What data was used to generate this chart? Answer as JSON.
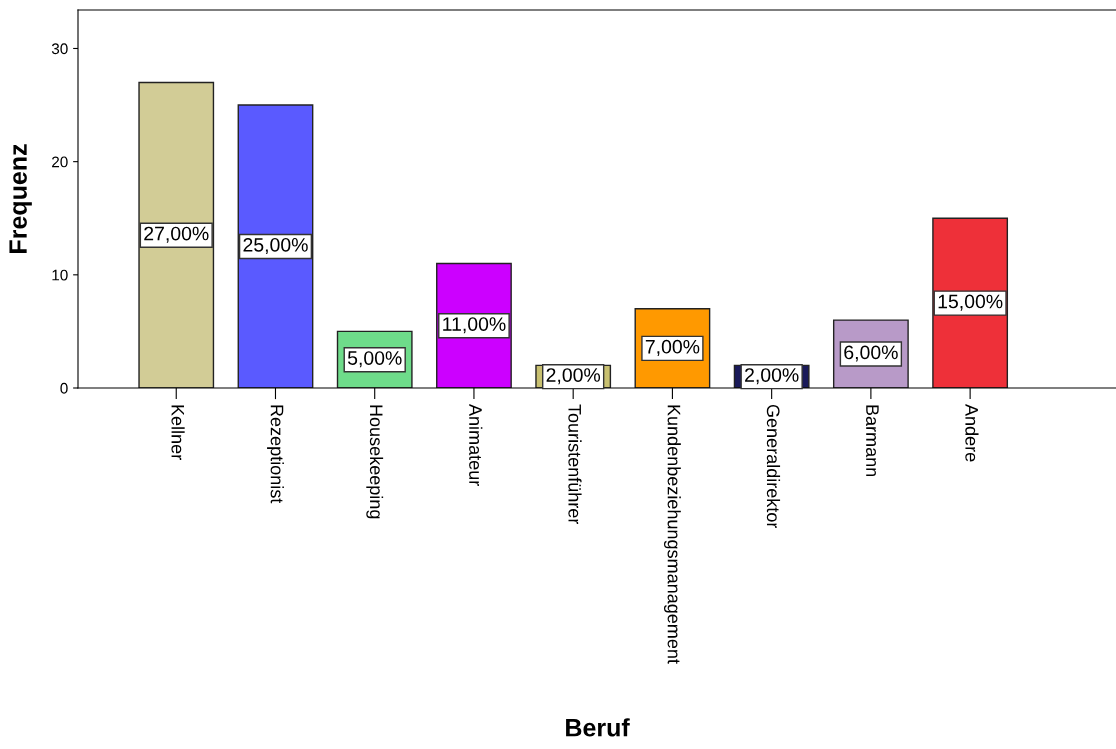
{
  "chart_data": {
    "type": "bar",
    "xlabel": "Beruf",
    "ylabel": "Frequenz",
    "categories": [
      "Kellner",
      "Rezeptionist",
      "Housekeeping",
      "Animateur",
      "Touristenführer",
      "Kundenbeziehungsmanagement",
      "Generaldirektor",
      "Barmann",
      "Andere"
    ],
    "values": [
      27,
      25,
      5,
      11,
      2,
      7,
      2,
      6,
      15
    ],
    "colors": [
      "#d2cc96",
      "#5a5aff",
      "#6edc8a",
      "#cc00ff",
      "#c8c070",
      "#ff9900",
      "#1a1a5a",
      "#b89ac8",
      "#ee3039"
    ],
    "value_labels": [
      "27,00%",
      "25,00%",
      "5,00%",
      "11,00%",
      "2,00%",
      "7,00%",
      "2,00%",
      "6,00%",
      "15,00%"
    ],
    "ylim": [
      0,
      33.4
    ],
    "yticks": [
      0,
      10,
      20,
      30
    ],
    "grid": false,
    "legend": false
  }
}
